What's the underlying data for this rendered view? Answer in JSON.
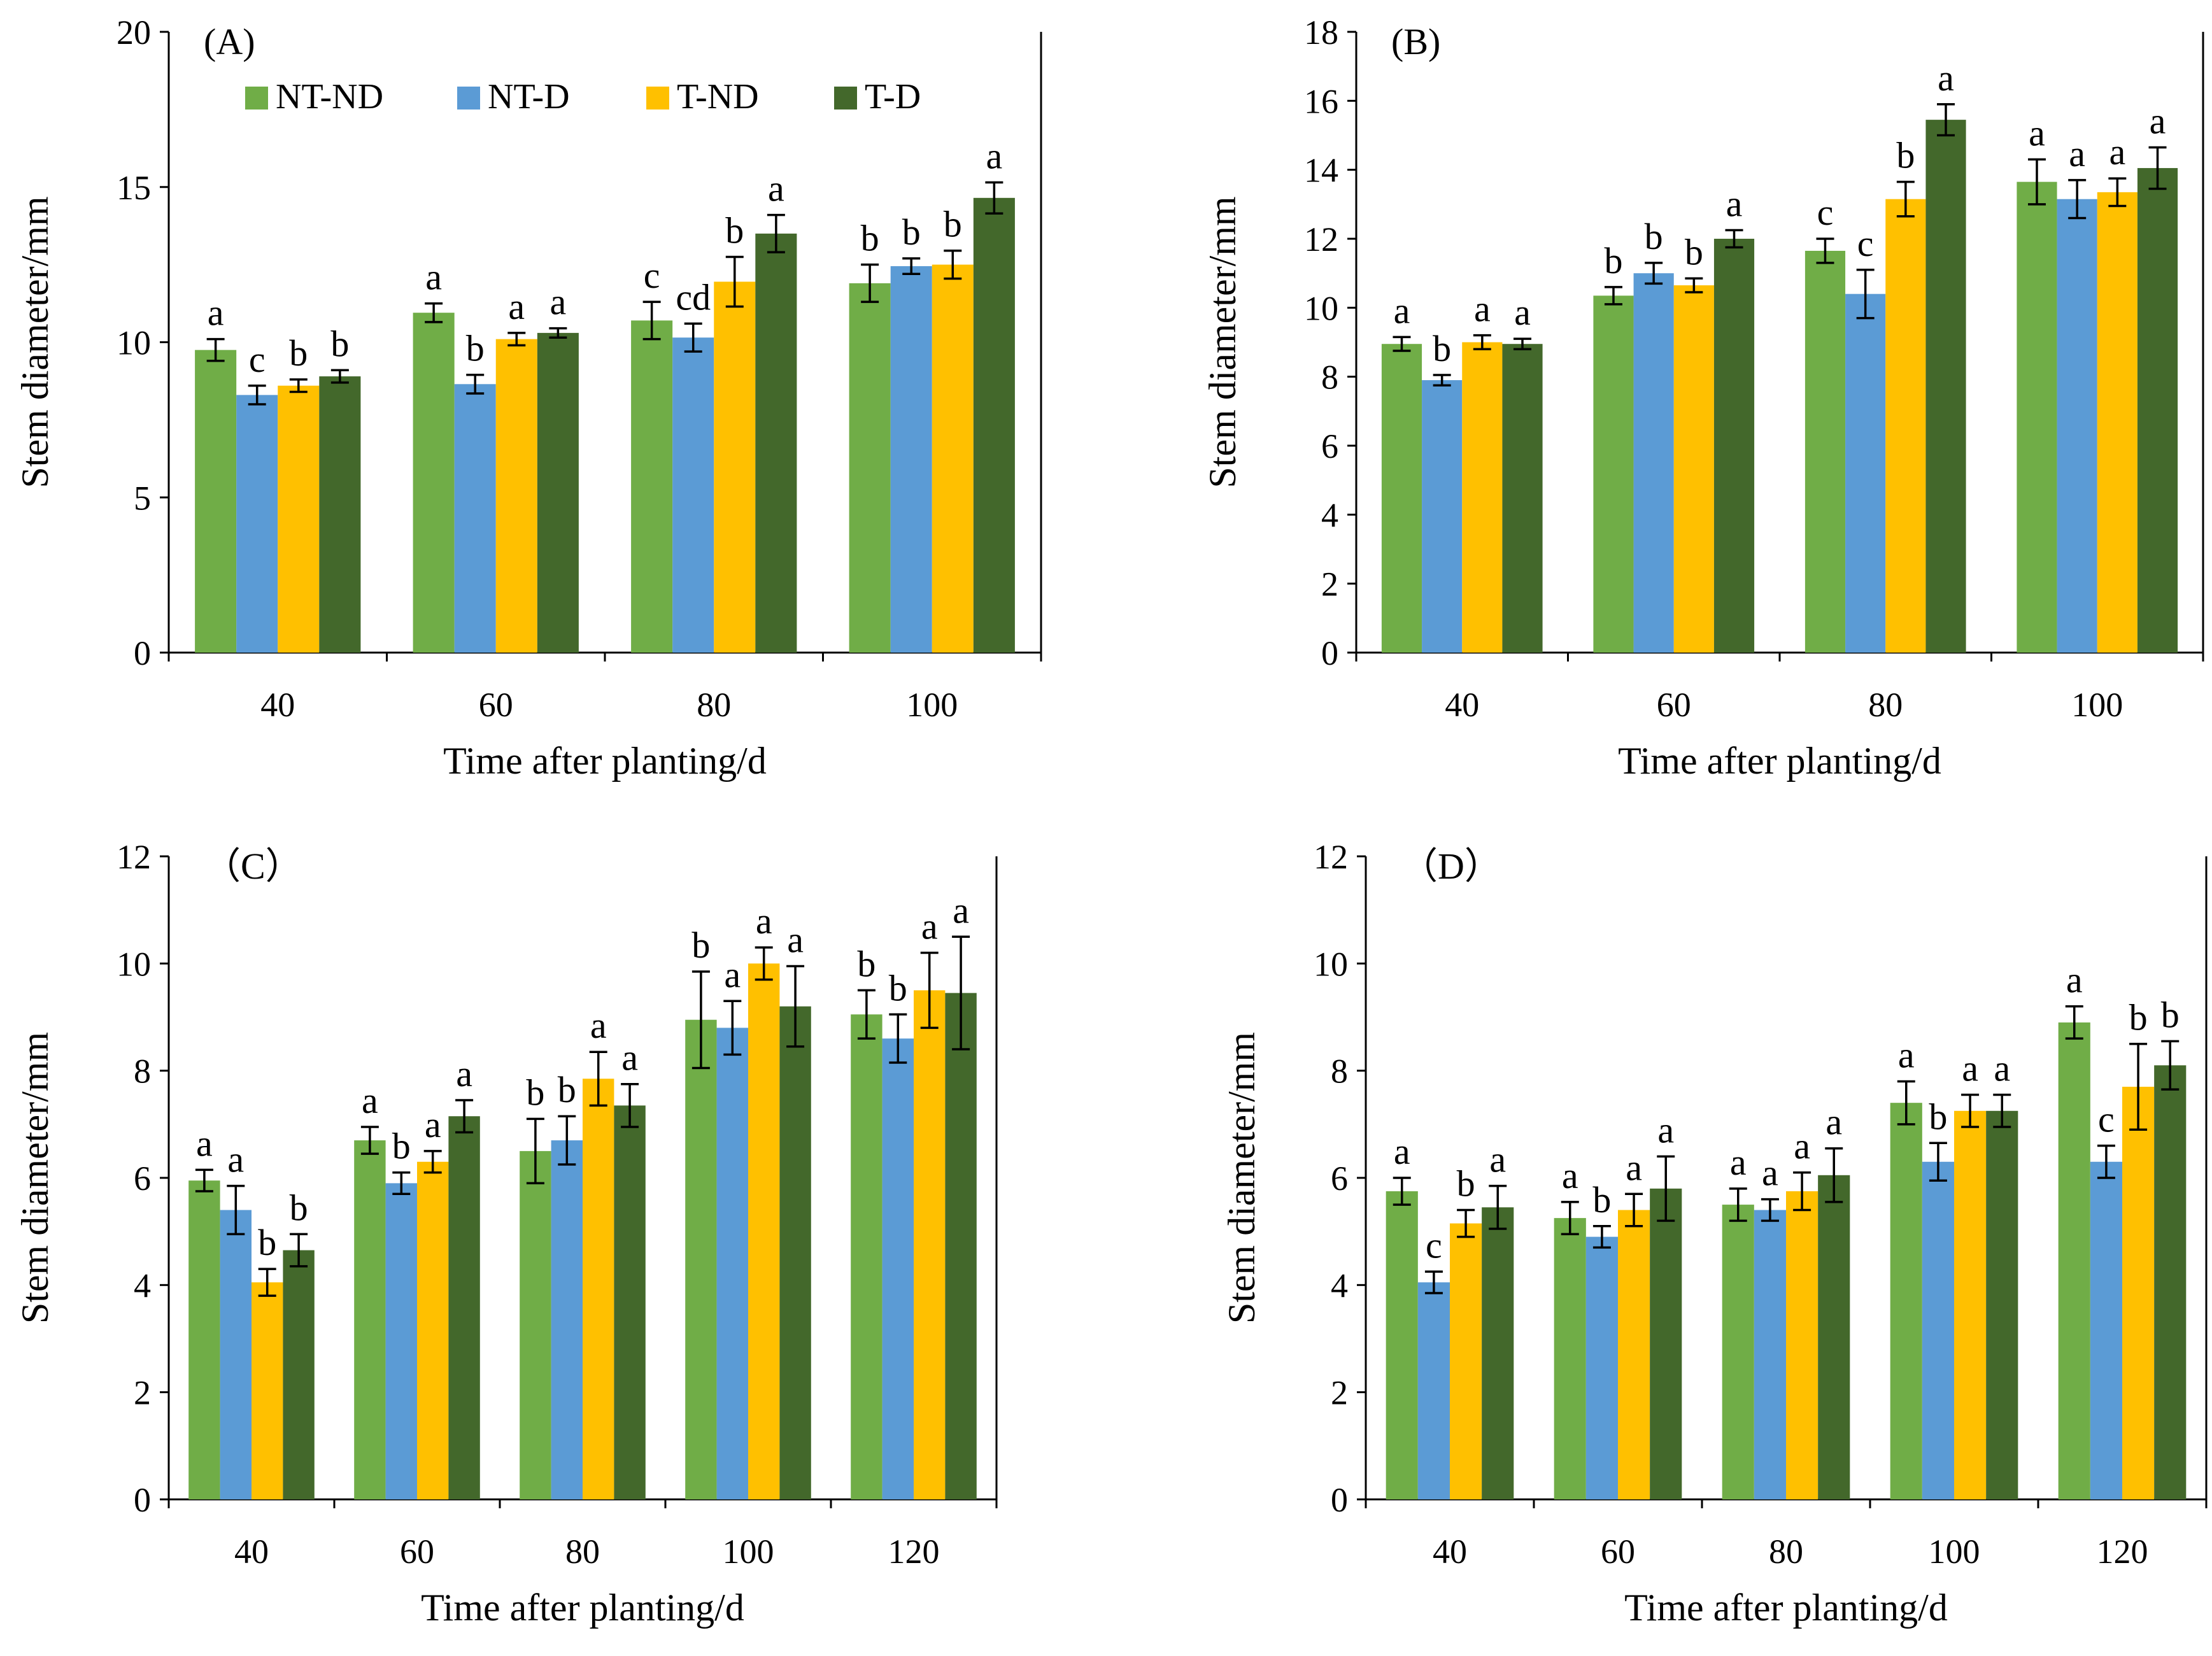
{
  "chart_data": [
    {
      "type": "bar",
      "panel_label": "(A)",
      "xlabel": "Time after planting/d",
      "ylabel": "Stem diameter/mm",
      "ylim": [
        0,
        20
      ],
      "yticks": [
        0,
        5,
        10,
        15,
        20
      ],
      "categories": [
        "40",
        "60",
        "80",
        "100"
      ],
      "legend": {
        "show": true,
        "placement": "top-left"
      },
      "series": [
        {
          "name": "NT-ND",
          "color": "#70AD47",
          "values": [
            9.75,
            10.95,
            10.7,
            11.9
          ],
          "errors": [
            0.35,
            0.3,
            0.6,
            0.6
          ],
          "letters": [
            "a",
            "a",
            "c",
            "b"
          ]
        },
        {
          "name": "NT-D",
          "color": "#5B9BD5",
          "values": [
            8.3,
            8.65,
            10.15,
            12.45
          ],
          "errors": [
            0.3,
            0.3,
            0.45,
            0.25
          ],
          "letters": [
            "c",
            "b",
            "cd",
            "b"
          ]
        },
        {
          "name": "T-ND",
          "color": "#FFC000",
          "values": [
            8.6,
            10.1,
            11.95,
            12.5
          ],
          "errors": [
            0.2,
            0.2,
            0.8,
            0.45
          ],
          "letters": [
            "b",
            "a",
            "b",
            "b"
          ]
        },
        {
          "name": "T-D",
          "color": "#43682B",
          "values": [
            8.9,
            10.3,
            13.5,
            14.65
          ],
          "errors": [
            0.2,
            0.15,
            0.6,
            0.5
          ],
          "letters": [
            "b",
            "a",
            "a",
            "a"
          ]
        }
      ]
    },
    {
      "type": "bar",
      "panel_label": "(B)",
      "xlabel": "Time after planting/d",
      "ylabel": "Stem diameter/mm",
      "ylim": [
        0,
        18
      ],
      "yticks": [
        0,
        2,
        4,
        6,
        8,
        10,
        12,
        14,
        16,
        18
      ],
      "categories": [
        "40",
        "60",
        "80",
        "100"
      ],
      "legend": {
        "show": false
      },
      "series": [
        {
          "name": "NT-ND",
          "color": "#70AD47",
          "values": [
            8.95,
            10.35,
            11.65,
            13.65
          ],
          "errors": [
            0.2,
            0.25,
            0.35,
            0.65
          ],
          "letters": [
            "a",
            "b",
            "c",
            "a"
          ]
        },
        {
          "name": "NT-D",
          "color": "#5B9BD5",
          "values": [
            7.9,
            11.0,
            10.4,
            13.15
          ],
          "errors": [
            0.15,
            0.3,
            0.7,
            0.55
          ],
          "letters": [
            "b",
            "b",
            "c",
            "a"
          ]
        },
        {
          "name": "T-ND",
          "color": "#FFC000",
          "values": [
            9.0,
            10.65,
            13.15,
            13.35
          ],
          "errors": [
            0.2,
            0.2,
            0.5,
            0.4
          ],
          "letters": [
            "a",
            "b",
            "b",
            "a"
          ]
        },
        {
          "name": "T-D",
          "color": "#43682B",
          "values": [
            8.95,
            12.0,
            15.45,
            14.05
          ],
          "errors": [
            0.15,
            0.25,
            0.45,
            0.6
          ],
          "letters": [
            "a",
            "a",
            "a",
            "a"
          ]
        }
      ]
    },
    {
      "type": "bar",
      "panel_label": "（C）",
      "xlabel": "Time after planting/d",
      "ylabel": "Stem diameter/mm",
      "ylim": [
        0,
        12
      ],
      "yticks": [
        0,
        2,
        4,
        6,
        8,
        10,
        12
      ],
      "categories": [
        "40",
        "60",
        "80",
        "100",
        "120"
      ],
      "legend": {
        "show": false
      },
      "series": [
        {
          "name": "NT-ND",
          "color": "#70AD47",
          "values": [
            5.95,
            6.7,
            6.5,
            8.95,
            9.05
          ],
          "errors": [
            0.2,
            0.25,
            0.6,
            0.9,
            0.45
          ],
          "letters": [
            "a",
            "a",
            "b",
            "b",
            "b"
          ]
        },
        {
          "name": "NT-D",
          "color": "#5B9BD5",
          "values": [
            5.4,
            5.9,
            6.7,
            8.8,
            8.6
          ],
          "errors": [
            0.45,
            0.2,
            0.45,
            0.5,
            0.45
          ],
          "letters": [
            "a",
            "b",
            "b",
            "a",
            "b"
          ]
        },
        {
          "name": "T-ND",
          "color": "#FFC000",
          "values": [
            4.05,
            6.3,
            7.85,
            10.0,
            9.5
          ],
          "errors": [
            0.25,
            0.2,
            0.5,
            0.3,
            0.7
          ],
          "letters": [
            "b",
            "a",
            "a",
            "a",
            "a"
          ]
        },
        {
          "name": "T-D",
          "color": "#43682B",
          "values": [
            4.65,
            7.15,
            7.35,
            9.2,
            9.45
          ],
          "errors": [
            0.3,
            0.3,
            0.4,
            0.75,
            1.05
          ],
          "letters": [
            "b",
            "a",
            "a",
            "a",
            "a"
          ]
        }
      ]
    },
    {
      "type": "bar",
      "panel_label": "（D）",
      "xlabel": "Time after planting/d",
      "ylabel": "Stem diameter/mm",
      "ylim": [
        0,
        12
      ],
      "yticks": [
        0,
        2,
        4,
        6,
        8,
        10,
        12
      ],
      "categories": [
        "40",
        "60",
        "80",
        "100",
        "120"
      ],
      "legend": {
        "show": false
      },
      "series": [
        {
          "name": "NT-ND",
          "color": "#70AD47",
          "values": [
            5.75,
            5.25,
            5.5,
            7.4,
            8.9
          ],
          "errors": [
            0.25,
            0.3,
            0.3,
            0.4,
            0.3
          ],
          "letters": [
            "a",
            "a",
            "a",
            "a",
            "a"
          ]
        },
        {
          "name": "NT-D",
          "color": "#5B9BD5",
          "values": [
            4.05,
            4.9,
            5.4,
            6.3,
            6.3
          ],
          "errors": [
            0.2,
            0.2,
            0.2,
            0.35,
            0.3
          ],
          "letters": [
            "c",
            "b",
            "a",
            "b",
            "c"
          ]
        },
        {
          "name": "T-ND",
          "color": "#FFC000",
          "values": [
            5.15,
            5.4,
            5.75,
            7.25,
            7.7
          ],
          "errors": [
            0.25,
            0.3,
            0.35,
            0.3,
            0.8
          ],
          "letters": [
            "b",
            "a",
            "a",
            "a",
            "b"
          ]
        },
        {
          "name": "T-D",
          "color": "#43682B",
          "values": [
            5.45,
            5.8,
            6.05,
            7.25,
            8.1
          ],
          "errors": [
            0.4,
            0.6,
            0.5,
            0.3,
            0.45
          ],
          "letters": [
            "a",
            "a",
            "a",
            "a",
            "b"
          ]
        }
      ]
    }
  ]
}
